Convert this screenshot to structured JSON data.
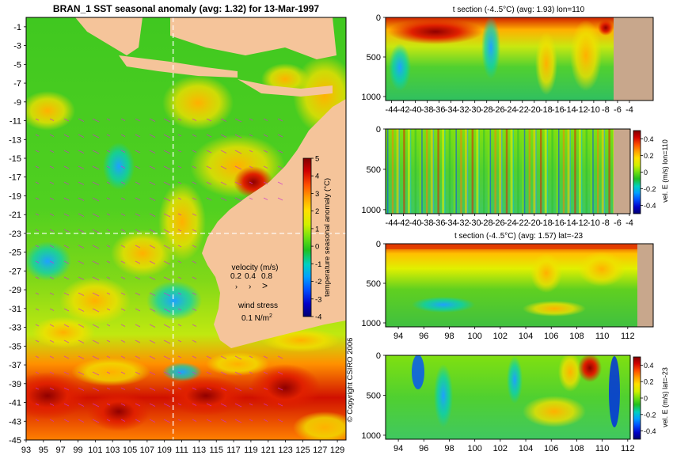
{
  "colors": {
    "land": "#f5c49a",
    "land_section": "#c8a78c",
    "grid_dash": "#ffffff",
    "vector": "#cc33cc",
    "colormap": [
      "#000070",
      "#0000c8",
      "#0050ff",
      "#00a0ff",
      "#00d0c0",
      "#20c020",
      "#70e010",
      "#d0f000",
      "#ffe000",
      "#ffa000",
      "#ff5000",
      "#d00000",
      "#800000"
    ]
  },
  "chart_data": [
    {
      "id": "map",
      "type": "heatmap",
      "title": "BRAN_1  SST seasonal anomaly  (avg: 1.32)  for 13-Mar-1997",
      "x": {
        "ticks": [
          "93",
          "95",
          "97",
          "99",
          "101",
          "103",
          "105",
          "107",
          "109",
          "111",
          "113",
          "115",
          "117",
          "119",
          "121",
          "123",
          "125",
          "127",
          "129"
        ],
        "range": [
          93,
          130
        ]
      },
      "y": {
        "ticks": [
          "-1",
          "-3",
          "-5",
          "-7",
          "-9",
          "-11",
          "-13",
          "-15",
          "-17",
          "-19",
          "-21",
          "-23",
          "-25",
          "-27",
          "-29",
          "-31",
          "-33",
          "-35",
          "-37",
          "-39",
          "-41",
          "-43",
          "-45"
        ],
        "range": [
          -45,
          0
        ]
      },
      "colorbar": {
        "label": "temperature seasonal anomaly (°C)",
        "ticks": [
          "5",
          "4",
          "3",
          "2",
          "1",
          "0",
          "-1",
          "-2",
          "-3",
          "-4"
        ],
        "range": [
          -4,
          5
        ]
      },
      "crosshair": {
        "lon": 110,
        "lat": -23
      },
      "legend": {
        "velocity_title": "velocity (m/s)",
        "velocity_values": [
          "0.2",
          "0.4",
          "0.8"
        ],
        "wind_title": "wind stress",
        "wind_value": "0.1 N/m",
        "wind_superscript": "2"
      },
      "copyright": "© Copyright CSIRO 2006"
    },
    {
      "id": "t-section-lon",
      "type": "heatmap",
      "title": "t section (-4..5°C)  (avg: 1.93)  lon=110",
      "x": {
        "ticks": [
          "-44",
          "-42",
          "-40",
          "-38",
          "-36",
          "-34",
          "-32",
          "-30",
          "-28",
          "-26",
          "-24",
          "-22",
          "-20",
          "-18",
          "-16",
          "-14",
          "-12",
          "-10",
          "-8",
          "-6",
          "-4"
        ],
        "range": [
          -45,
          0
        ]
      },
      "y": {
        "ticks": [
          "0",
          "500",
          "1000"
        ],
        "range": [
          1050,
          0
        ]
      }
    },
    {
      "id": "vel-section-lon",
      "type": "heatmap",
      "title": "",
      "x": {
        "ticks": [
          "-44",
          "-42",
          "-40",
          "-38",
          "-36",
          "-34",
          "-32",
          "-30",
          "-28",
          "-26",
          "-24",
          "-22",
          "-20",
          "-18",
          "-16",
          "-14",
          "-12",
          "-10",
          "-8",
          "-6",
          "-4"
        ],
        "range": [
          -45,
          0
        ]
      },
      "y": {
        "ticks": [
          "0",
          "500",
          "1000"
        ],
        "range": [
          1050,
          0
        ]
      },
      "colorbar": {
        "label": "vel. E (m/s) lon=110",
        "ticks": [
          "0.4",
          "0.2",
          "0",
          "-0.2",
          "-0.4"
        ],
        "range": [
          -0.5,
          0.5
        ]
      }
    },
    {
      "id": "t-section-lat",
      "type": "heatmap",
      "title": "t section (-4..5°C)  (avg: 1.57)  lat=-23",
      "x": {
        "ticks": [
          "94",
          "96",
          "98",
          "100",
          "102",
          "104",
          "106",
          "108",
          "110",
          "112"
        ],
        "range": [
          93,
          114
        ]
      },
      "y": {
        "ticks": [
          "0",
          "500",
          "1000"
        ],
        "range": [
          1050,
          0
        ]
      }
    },
    {
      "id": "vel-section-lat",
      "type": "heatmap",
      "title": "",
      "x": {
        "ticks": [
          "94",
          "96",
          "98",
          "100",
          "102",
          "104",
          "106",
          "108",
          "110",
          "112"
        ],
        "range": [
          93,
          114
        ]
      },
      "y": {
        "ticks": [
          "0",
          "500",
          "1000"
        ],
        "range": [
          1050,
          0
        ]
      },
      "colorbar": {
        "label": "vel. E (m/s) lat=-23",
        "ticks": [
          "0.4",
          "0.2",
          "0",
          "-0.2",
          "-0.4"
        ],
        "range": [
          -0.5,
          0.5
        ]
      }
    }
  ]
}
